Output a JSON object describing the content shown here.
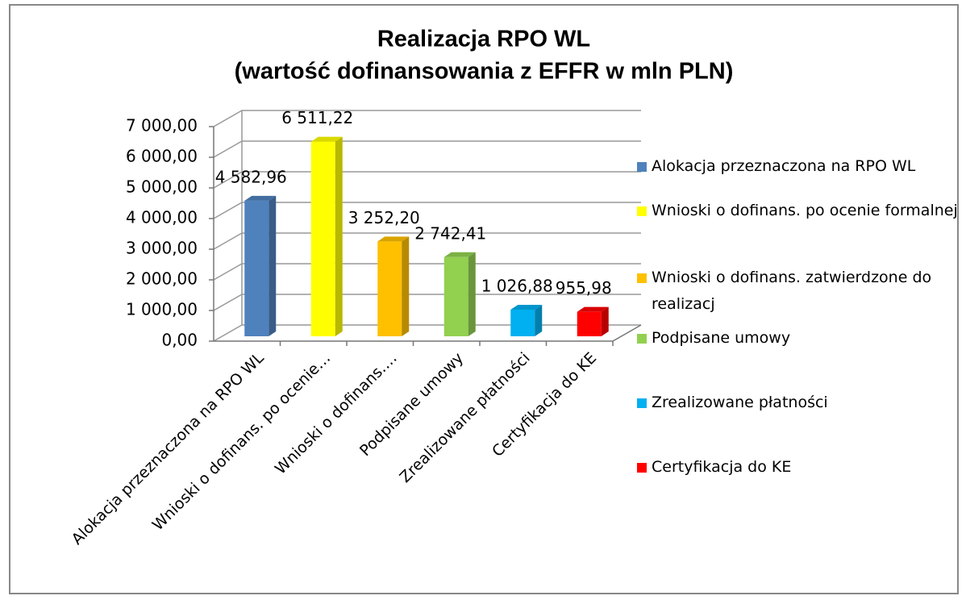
{
  "chart_data": {
    "type": "bar3d",
    "title": "Realizacja RPO WL",
    "subtitle": "(wartość dofinansowania z EFFR w mln PLN)",
    "categories": [
      "Alokacja przeznaczona na RPO WL",
      "Wnioski o dofinans. po ocenie…",
      "Wnioski o dofinans.…",
      "Podpisane umowy",
      "Zrealizowane płatności",
      "Certyfikacja do KE"
    ],
    "values": [
      4582.96,
      6511.22,
      3252.2,
      2742.41,
      1026.88,
      955.98
    ],
    "value_labels": [
      "4 582,96",
      "6 511,22",
      "3 252,20",
      "2 742,41",
      "1 026,88",
      "955,98"
    ],
    "colors": [
      "#4f81bd",
      "#ffff00",
      "#ffc000",
      "#92d050",
      "#00b0f0",
      "#ff0000"
    ],
    "legend": [
      "Alokacja przeznaczona na RPO WL",
      "Wnioski o dofinans. po ocenie formalnej",
      "Wnioski o dofinans. zatwierdzone do realizacj",
      "Podpisane umowy",
      "Zrealizowane płatności",
      "Certyfikacja do KE"
    ],
    "legend_position": "right",
    "ylim": [
      0,
      7000
    ],
    "yticks": [
      {
        "value": 0,
        "label": "0,00"
      },
      {
        "value": 1000,
        "label": "1 000,00"
      },
      {
        "value": 2000,
        "label": "2 000,00"
      },
      {
        "value": 3000,
        "label": "3 000,00"
      },
      {
        "value": 4000,
        "label": "4 000,00"
      },
      {
        "value": 5000,
        "label": "5 000,00"
      },
      {
        "value": 6000,
        "label": "6 000,00"
      },
      {
        "value": 7000,
        "label": "7 000,00"
      }
    ],
    "grid": true
  }
}
